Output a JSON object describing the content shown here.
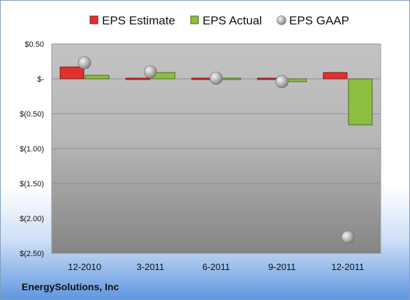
{
  "company": "EnergySolutions, Inc",
  "chart_data": {
    "type": "bar",
    "categories": [
      "12-2010",
      "3-2011",
      "6-2011",
      "9-2011",
      "12-2011"
    ],
    "series": [
      {
        "name": "EPS Estimate",
        "kind": "bar",
        "values": [
          0.17,
          -0.01,
          -0.01,
          0.0,
          0.09
        ],
        "color": "#e03030"
      },
      {
        "name": "EPS Actual",
        "kind": "bar",
        "values": [
          0.05,
          0.09,
          -0.01,
          -0.04,
          -0.66
        ],
        "color": "#8cbf3f"
      },
      {
        "name": "EPS GAAP",
        "kind": "marker",
        "values": [
          0.23,
          0.1,
          0.01,
          -0.04,
          -2.27
        ],
        "color": "#b8b8b8"
      }
    ],
    "y_ticks": [
      "$0.50",
      "$-",
      "$(0.50)",
      "$(1.00)",
      "$(1.50)",
      "$(2.00)",
      "$(2.50)"
    ],
    "ylim": [
      -2.5,
      0.5
    ],
    "grid": true,
    "legend_position": "top"
  }
}
